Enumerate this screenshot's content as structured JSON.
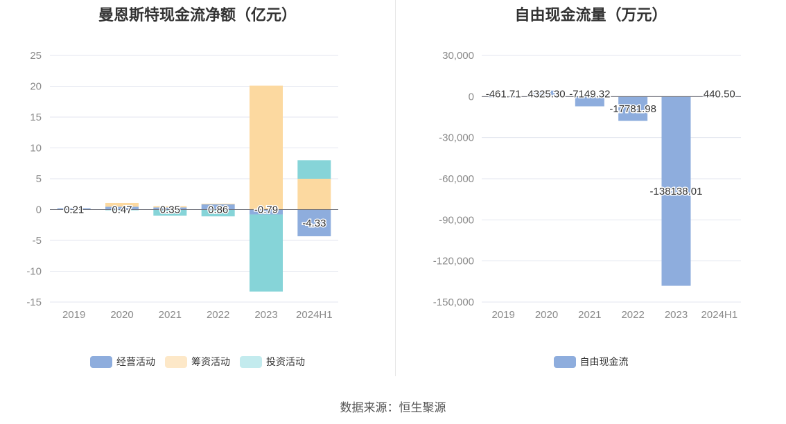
{
  "charts": [
    {
      "type": "bar",
      "stacked": true,
      "title": "曼恩斯特现金流净额（亿元）",
      "categories": [
        "2019",
        "2020",
        "2021",
        "2022",
        "2023",
        "2024H1"
      ],
      "yticks": [
        "25",
        "20",
        "15",
        "10",
        "5",
        "0",
        "-5",
        "-10",
        "-15"
      ],
      "ylim": [
        -15,
        25
      ],
      "series": [
        {
          "name": "经营活动",
          "color": "#8eaddd",
          "values": [
            0.21,
            0.47,
            0.35,
            0.86,
            -0.79,
            -4.33
          ],
          "labels": [
            "0.21",
            "0.47",
            "0.35",
            "0.86",
            "-0.79",
            "-4.33"
          ]
        },
        {
          "name": "筹资活动",
          "color": "#fcd9a0",
          "values": [
            0.0,
            0.6,
            0.2,
            0.1,
            20.1,
            5.0
          ],
          "labels": []
        },
        {
          "name": "投资活动",
          "color": "#86d4d8",
          "values": [
            0.0,
            -0.1,
            -1.0,
            -1.1,
            -12.5,
            3.0
          ],
          "labels": []
        }
      ],
      "legend": [
        {
          "name": "经营活动",
          "color": "#8eaddd"
        },
        {
          "name": "筹资活动",
          "color": "#fde8c8"
        },
        {
          "name": "投资活动",
          "color": "#c3ebee"
        }
      ]
    },
    {
      "type": "bar",
      "title": "自由现金流量（万元）",
      "categories": [
        "2019",
        "2020",
        "2021",
        "2022",
        "2023",
        "2024H1"
      ],
      "yticks": [
        "30,000",
        "0",
        "-30,000",
        "-60,000",
        "-90,000",
        "-120,000",
        "-150,000"
      ],
      "ylim": [
        -150000,
        30000
      ],
      "series": [
        {
          "name": "自由现金流",
          "color": "#8eaddd",
          "values": [
            -461.71,
            4325.3,
            -7149.32,
            -17781.98,
            -138138.01,
            440.5
          ],
          "labels": [
            "-461.71",
            "4325.30",
            "-7149.32",
            "-17781.98",
            "-138138.01",
            "440.50"
          ]
        }
      ],
      "legend": [
        {
          "name": "自由现金流",
          "color": "#8eaddd"
        }
      ]
    }
  ],
  "source": "数据来源：恒生聚源"
}
